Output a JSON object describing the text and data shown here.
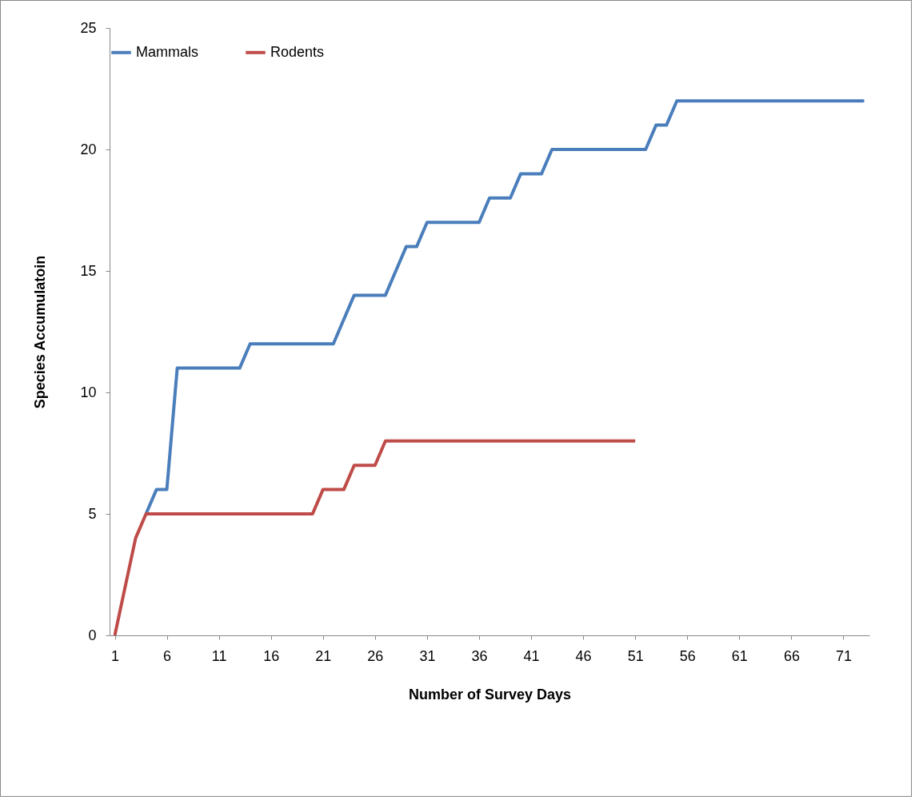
{
  "chart_data": {
    "type": "line",
    "xlabel": "Number of Survey Days",
    "ylabel": "Species Accumulatoin",
    "x": [
      1,
      2,
      3,
      4,
      5,
      6,
      7,
      8,
      9,
      10,
      11,
      12,
      13,
      14,
      15,
      16,
      17,
      18,
      19,
      20,
      21,
      22,
      23,
      24,
      25,
      26,
      27,
      28,
      29,
      30,
      31,
      32,
      33,
      34,
      35,
      36,
      37,
      38,
      39,
      40,
      41,
      42,
      43,
      44,
      45,
      46,
      47,
      48,
      49,
      50,
      51,
      52,
      53,
      54,
      55,
      56,
      57,
      58,
      59,
      60,
      61,
      62,
      63,
      64,
      65,
      66,
      67,
      68,
      69,
      70,
      71,
      72,
      73
    ],
    "series": [
      {
        "name": "Mammals",
        "color": "#4a7ebb",
        "values": [
          null,
          null,
          null,
          5,
          6,
          6,
          11,
          11,
          11,
          11,
          11,
          11,
          11,
          12,
          12,
          12,
          12,
          12,
          12,
          12,
          12,
          12,
          13,
          14,
          14,
          14,
          14,
          15,
          16,
          16,
          17,
          17,
          17,
          17,
          17,
          17,
          18,
          18,
          18,
          19,
          19,
          19,
          20,
          20,
          20,
          20,
          20,
          20,
          20,
          20,
          20,
          20,
          21,
          21,
          22,
          22,
          22,
          22,
          22,
          22,
          22,
          22,
          22,
          22,
          22,
          22,
          22,
          22,
          22,
          22,
          22,
          22,
          22
        ]
      },
      {
        "name": "Rodents",
        "color": "#be4b48",
        "values": [
          0,
          2,
          4,
          5,
          5,
          5,
          5,
          5,
          5,
          5,
          5,
          5,
          5,
          5,
          5,
          5,
          5,
          5,
          5,
          5,
          6,
          6,
          6,
          7,
          7,
          7,
          8,
          8,
          8,
          8,
          8,
          8,
          8,
          8,
          8,
          8,
          8,
          8,
          8,
          8,
          8,
          8,
          8,
          8,
          8,
          8,
          8,
          8,
          8,
          8,
          8,
          null,
          null,
          null,
          null,
          null,
          null,
          null,
          null,
          null,
          null,
          null,
          null,
          null,
          null,
          null,
          null,
          null,
          null,
          null,
          null,
          null,
          null
        ]
      }
    ],
    "xlim": [
      0.5,
      73.5
    ],
    "xticks": [
      1,
      6,
      11,
      16,
      21,
      26,
      31,
      36,
      41,
      46,
      51,
      56,
      61,
      66,
      71
    ],
    "ylim": [
      0,
      25
    ],
    "yticks": [
      0,
      5,
      10,
      15,
      20,
      25
    ],
    "grid": false,
    "legend": "top",
    "marker": "none",
    "line_style": "solid"
  }
}
